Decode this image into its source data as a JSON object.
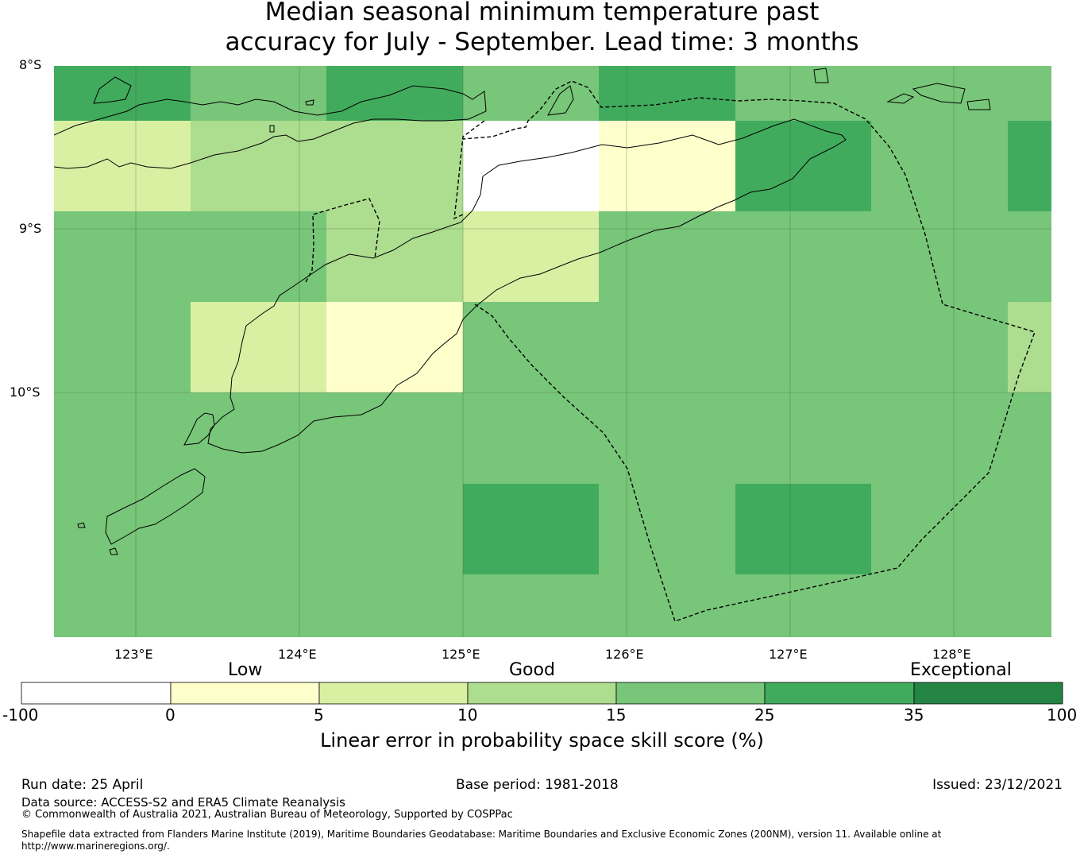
{
  "title": {
    "line1": "Median seasonal minimum temperature past",
    "line2": "accuracy for July - September. Lead time: 3 months"
  },
  "map": {
    "lon_range": [
      122.5,
      128.6
    ],
    "lat_range": [
      -8.0,
      -11.5
    ],
    "lat_labels": [
      "8°S",
      "9°S",
      "10°S"
    ],
    "lon_labels": [
      "123°E",
      "124°E",
      "125°E",
      "126°E",
      "127°E",
      "128°E"
    ],
    "grid_lines": true
  },
  "legend": {
    "categories": [
      "Low",
      "Good",
      "Exceptional"
    ],
    "boundaries": [
      "-100",
      "0",
      "5",
      "10",
      "15",
      "25",
      "35",
      "100"
    ],
    "colors": [
      "#ffffff",
      "#ffffcc",
      "#d9f0a3",
      "#addd8e",
      "#78c679",
      "#41ab5d",
      "#238443"
    ],
    "label": "Linear error in probability space skill score (%)"
  },
  "footer": {
    "run_date": "Run date: 25 April",
    "base_period": "Base period: 1981-2018",
    "issued": "Issued: 23/12/2021",
    "data_source": "Data source: ACCESS-S2 and ERA5 Climate Reanalysis",
    "copyright": "© Commonwealth of Australia 2021, Australian Bureau of Meteorology, Supported by COSPPac",
    "shapefile_line1": "Shapefile data extracted from Flanders Marine Institute (2019), Maritime Boundaries Geodatabase: Maritime Boundaries and Exclusive Economic Zones (200NM), version 11. Available online at",
    "shapefile_line2": "http://www.marineregions.org/."
  }
}
